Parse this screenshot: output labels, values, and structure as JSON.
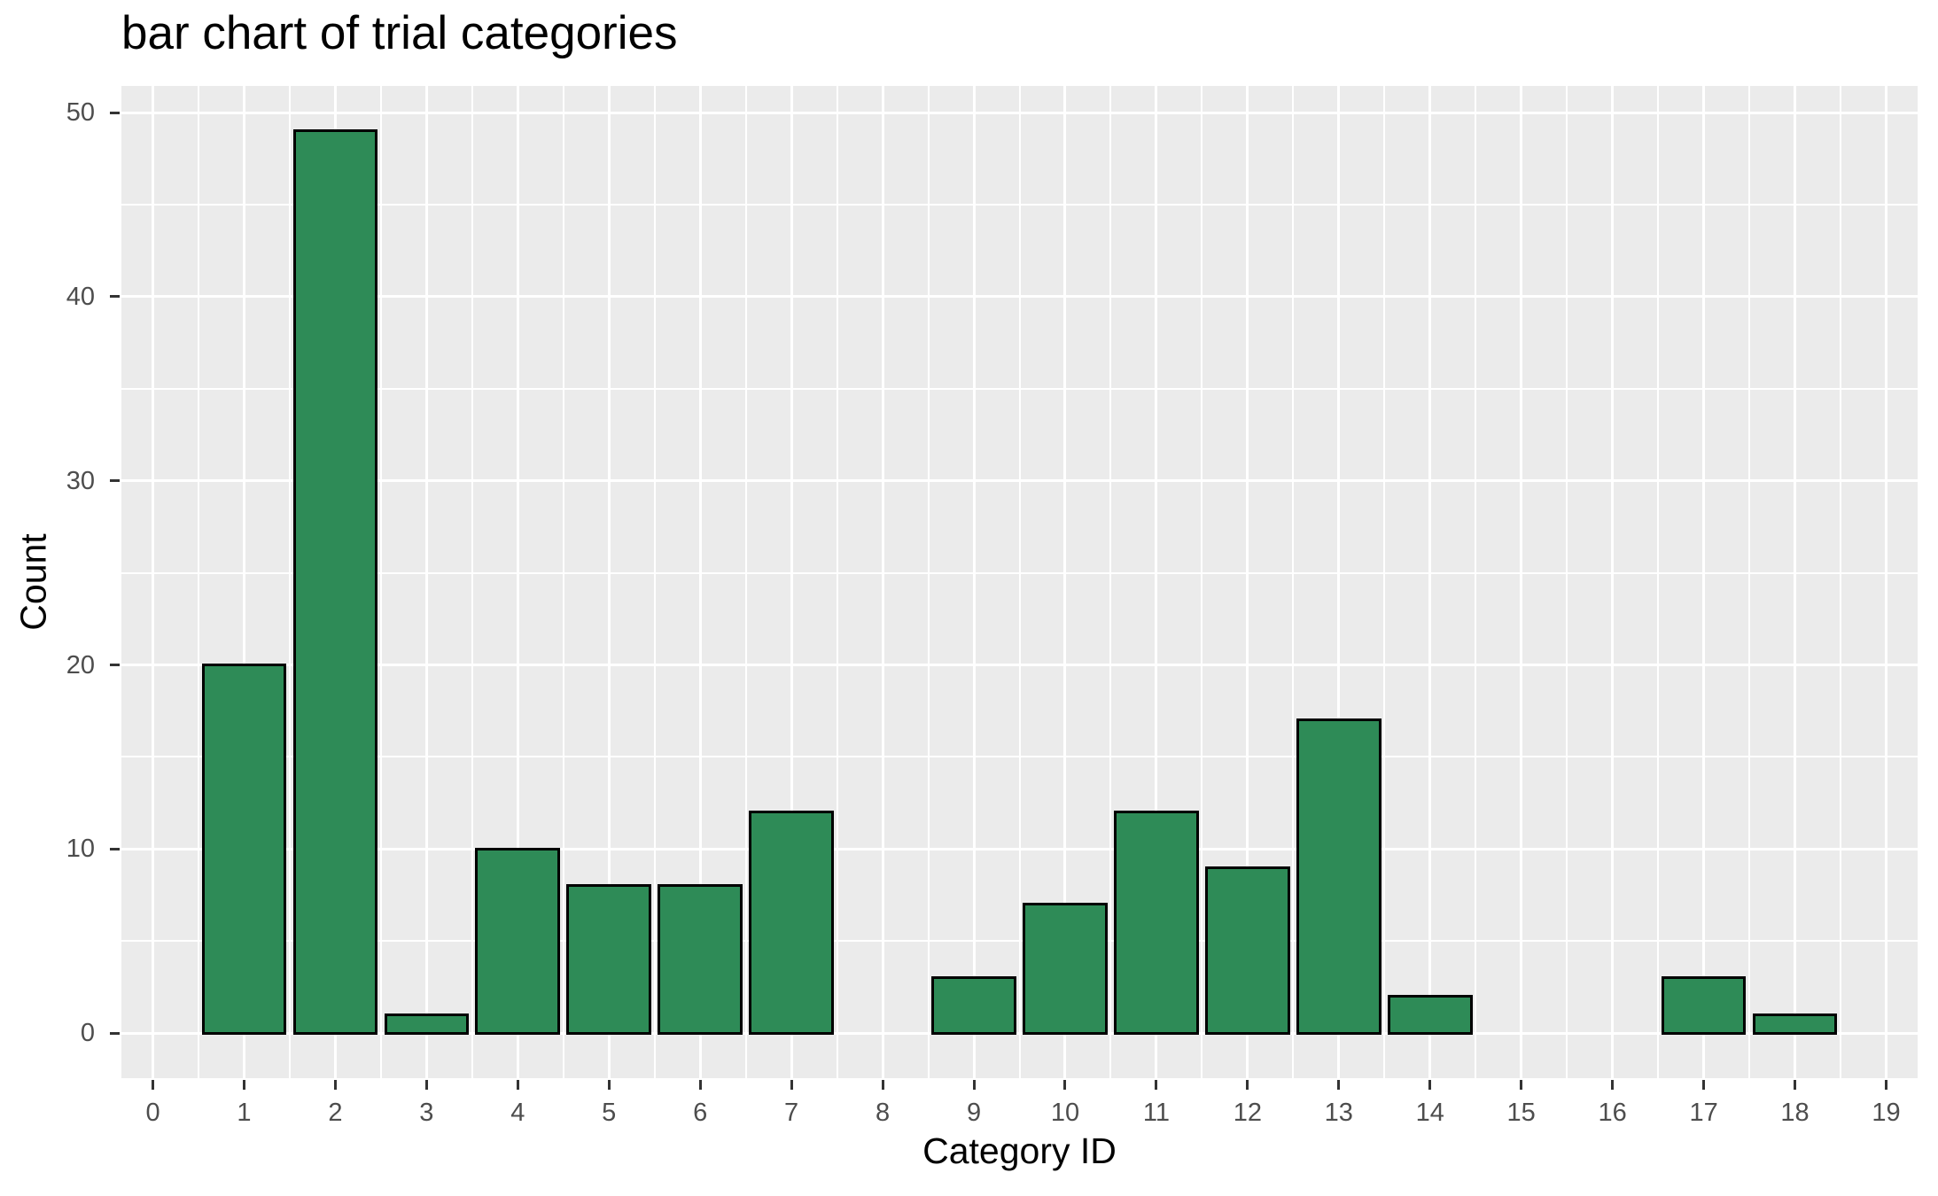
{
  "chart_data": {
    "type": "bar",
    "title": "bar chart of trial categories",
    "xlabel": "Category ID",
    "ylabel": "Count",
    "categories": [
      0,
      1,
      2,
      3,
      4,
      5,
      6,
      7,
      8,
      9,
      10,
      11,
      12,
      13,
      14,
      15,
      16,
      17,
      18,
      19
    ],
    "values": [
      0,
      20,
      49,
      1,
      10,
      8,
      8,
      12,
      0,
      3,
      7,
      12,
      9,
      17,
      2,
      0,
      0,
      3,
      1,
      0
    ],
    "x_ticks": [
      0,
      1,
      2,
      3,
      4,
      5,
      6,
      7,
      8,
      9,
      10,
      11,
      12,
      13,
      14,
      15,
      16,
      17,
      18,
      19
    ],
    "y_ticks": [
      0,
      10,
      20,
      30,
      40,
      50
    ],
    "y_minor_ticks": [
      5,
      15,
      25,
      35,
      45
    ],
    "x_minor_step": 0.5,
    "x_domain": [
      -0.345,
      19.345
    ],
    "y_domain": [
      -2.45,
      51.45
    ],
    "ylim": [
      0,
      50
    ],
    "bar_width": 0.9,
    "grid": "on",
    "legend": "none",
    "colors": {
      "bar_fill": "#2E8B57",
      "bar_stroke": "#000000",
      "panel_background": "#EBEBEB",
      "gridline": "#FFFFFF",
      "tick_label": "#4D4D4D",
      "tick_mark": "#333333",
      "text": "#000000"
    }
  }
}
